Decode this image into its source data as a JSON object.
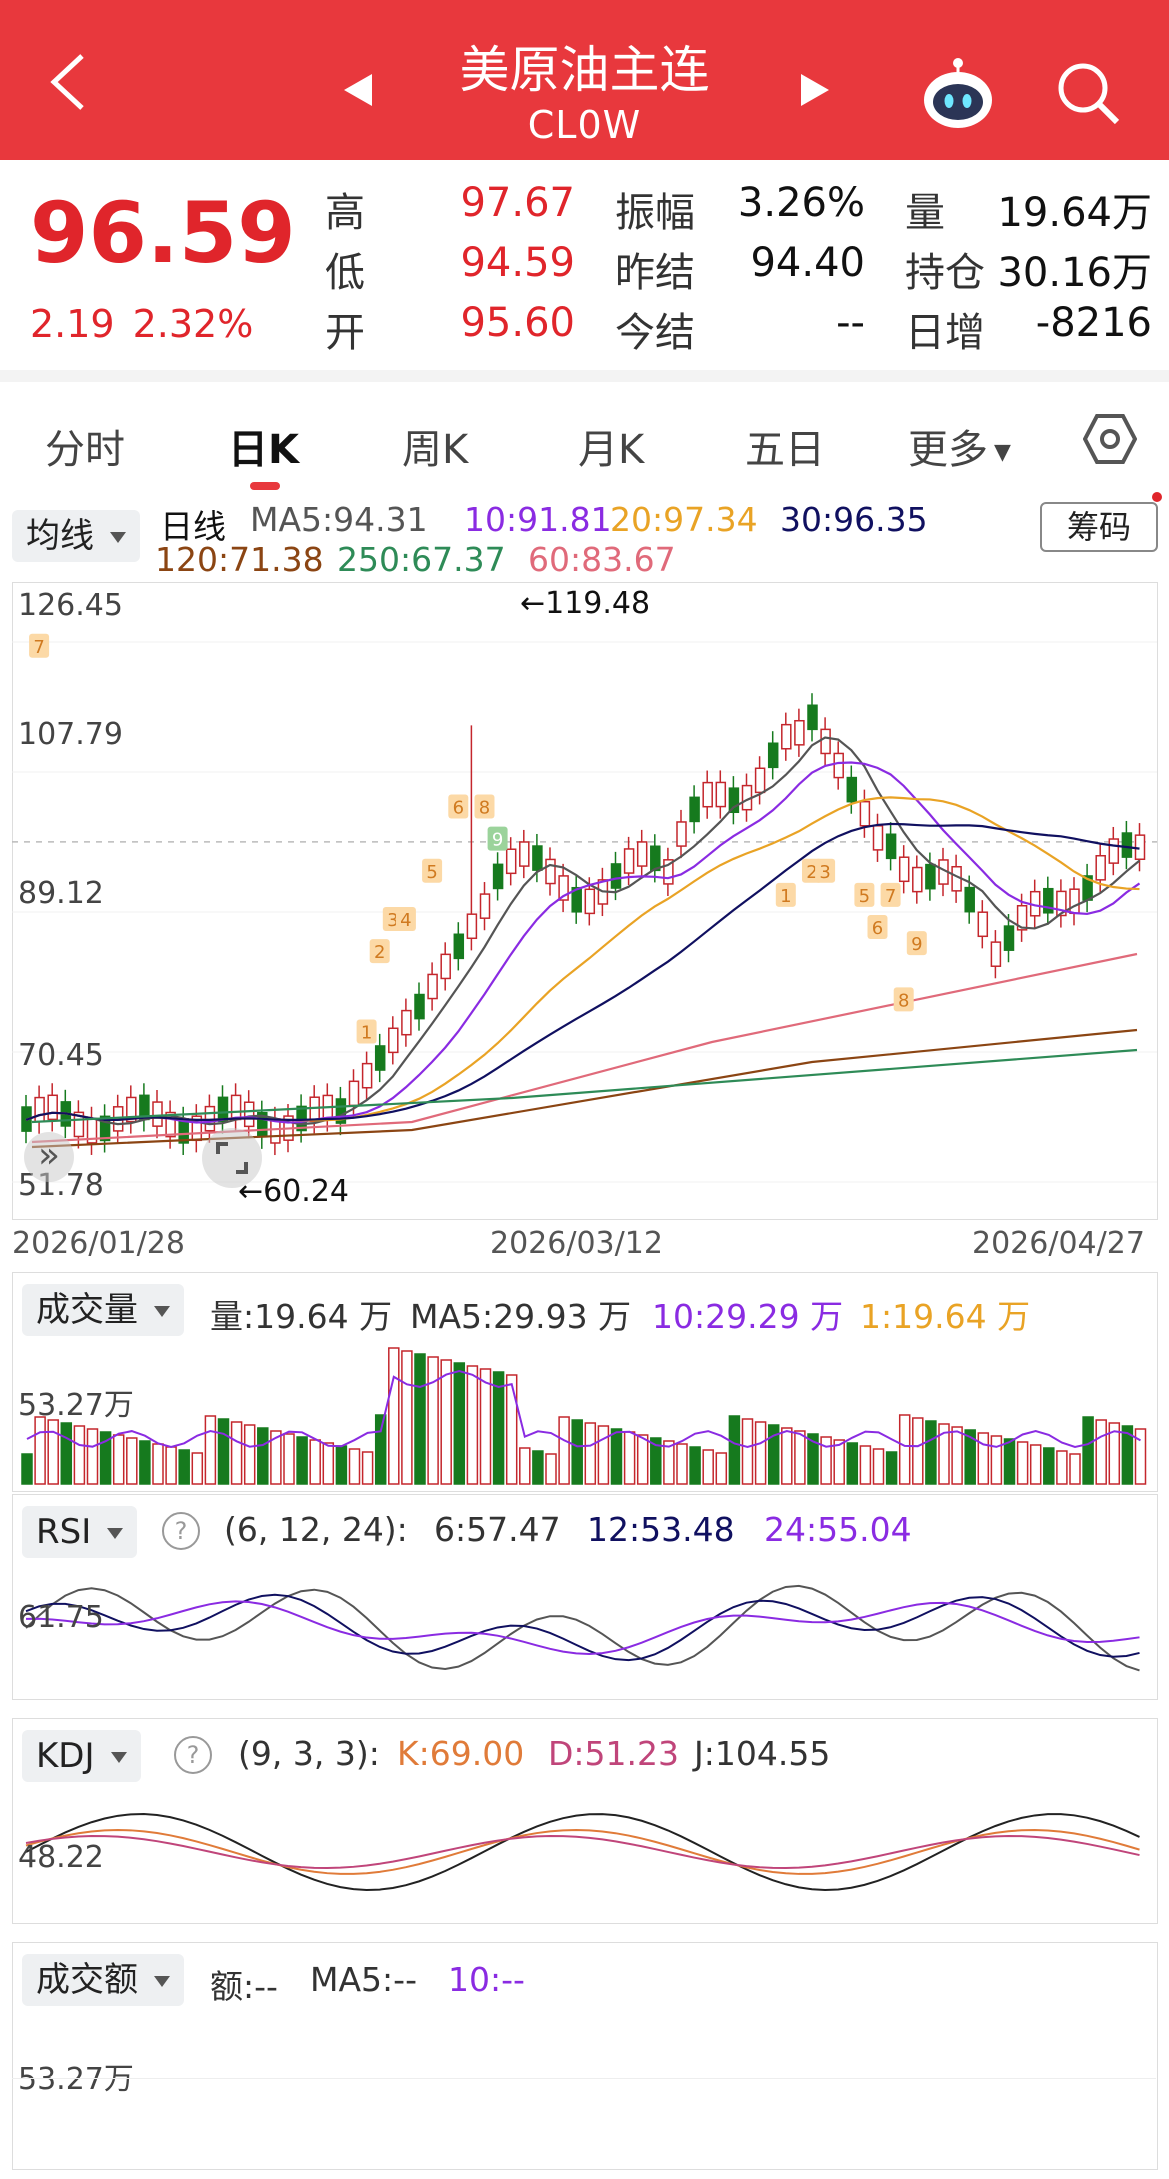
{
  "header": {
    "title": "美原油主连",
    "subtitle": "CL0W",
    "bg": "#e8383d"
  },
  "quote": {
    "price": "96.59",
    "change": "2.19",
    "change_pct": "2.32%",
    "high_label": "高",
    "high": "97.67",
    "low_label": "低",
    "low": "94.59",
    "open_label": "开",
    "open": "95.60",
    "amp_label": "振幅",
    "amp": "3.26%",
    "prev_label": "昨结",
    "prev": "94.40",
    "settle_label": "今结",
    "settle": "--",
    "vol_label": "量",
    "vol": "19.64万",
    "oi_label": "持仓",
    "oi": "30.16万",
    "day_inc_label": "日增",
    "day_inc": "-8216"
  },
  "tabs": [
    {
      "label": "分时"
    },
    {
      "label": "日K",
      "active": true
    },
    {
      "label": "周K"
    },
    {
      "label": "月K"
    },
    {
      "label": "五日"
    },
    {
      "label": "更多"
    }
  ],
  "kline": {
    "dropdown": "均线",
    "period": "日线",
    "ma": {
      "ma5": "MA5:94.31",
      "ma10": "10:91.81",
      "ma20": "20:97.34",
      "ma30": "30:96.35",
      "ma120": "120:71.38",
      "ma250": "250:67.37",
      "ma60": "60:83.67"
    },
    "chip_button": "筹码",
    "y_ticks": [
      "126.45",
      "107.79",
      "89.12",
      "70.45",
      "51.78"
    ],
    "max_label": "←119.48",
    "min_label": "←60.24",
    "dates": [
      "2026/01/28",
      "2026/03/12",
      "2026/04/27"
    ],
    "markers": [
      "1",
      "2",
      "3",
      "4",
      "5",
      "6",
      "8",
      "9",
      "7",
      "1",
      "2",
      "3",
      "5",
      "7",
      "6",
      "8",
      "9"
    ]
  },
  "volume": {
    "dropdown": "成交量",
    "vol": "量:19.64 万",
    "ma5": "MA5:29.93 万",
    "ma10": "10:29.29 万",
    "ma1": "1:19.64 万",
    "axis": "53.27万"
  },
  "rsi": {
    "dropdown": "RSI",
    "params": "(6, 12, 24):",
    "r6": "6:57.47",
    "r12": "12:53.48",
    "r24": "24:55.04",
    "axis": "61.75"
  },
  "kdj": {
    "dropdown": "KDJ",
    "params": "(9, 3, 3):",
    "k": "K:69.00",
    "d": "D:51.23",
    "j": "J:104.55",
    "axis": "48.22"
  },
  "amount": {
    "dropdown": "成交额",
    "amt": "额:--",
    "ma5": "MA5:--",
    "ma10": "10:--",
    "axis": "53.27万"
  },
  "colors": {
    "up": "#c4262c",
    "down": "#167a1e",
    "ma5": "#555555",
    "ma10": "#8a2be2",
    "ma20": "#e9a325",
    "ma30": "#101060",
    "ma60": "#e06a7a",
    "ma120": "#8b4513",
    "ma250": "#2e8b57"
  }
}
